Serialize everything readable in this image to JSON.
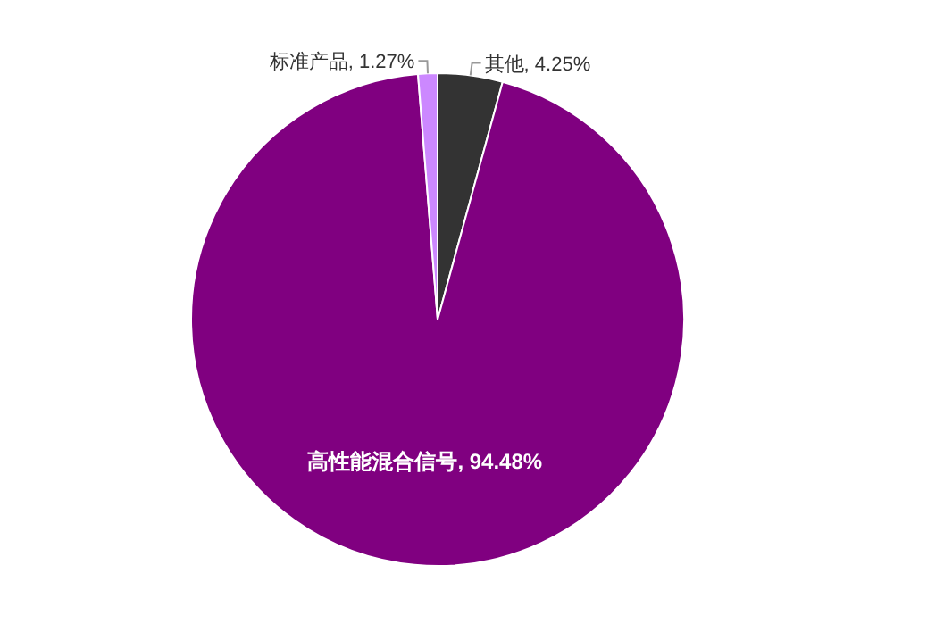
{
  "chart_data": {
    "type": "pie",
    "categories": [
      "其他",
      "高性能混合信号",
      "标准产品"
    ],
    "values": [
      4.25,
      94.48,
      1.27
    ],
    "value_labels": [
      "4.25%",
      "94.48%",
      "1.27%"
    ],
    "colors": [
      "#333333",
      "#800080",
      "#cc88ff"
    ],
    "legend": false
  }
}
